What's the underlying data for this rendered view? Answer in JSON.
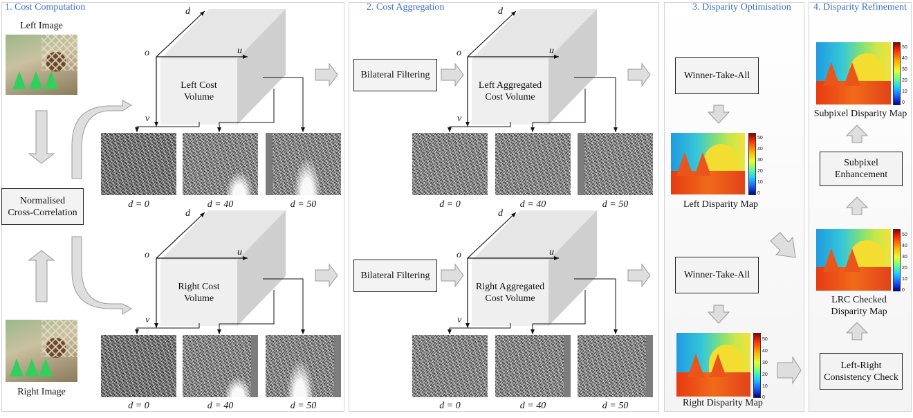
{
  "panels": {
    "p1": {
      "title": "1. Cost Computation"
    },
    "p2": {
      "title": "2. Cost Aggregation"
    },
    "p3": {
      "title": "3. Disparity Optimisation"
    },
    "p4": {
      "title": "4. Disparity Refinement"
    }
  },
  "inputs": {
    "left_label": "Left Image",
    "right_label": "Right Image"
  },
  "ncc": {
    "line1": "Normalised",
    "line2": "Cross-Correlation"
  },
  "axes": {
    "d": "d",
    "u": "u",
    "o": "o",
    "v": "v"
  },
  "cubes": {
    "left_cost": {
      "line1": "Left Cost",
      "line2": "Volume"
    },
    "right_cost": {
      "line1": "Right Cost",
      "line2": "Volume"
    },
    "left_agg": {
      "line1": "Left Aggregated",
      "line2": "Cost Volume"
    },
    "right_agg": {
      "line1": "Right Aggregated",
      "line2": "Cost Volume"
    }
  },
  "slices": {
    "d0": "d = 0",
    "d40": "d = 40",
    "d50": "d = 50"
  },
  "boxes": {
    "bilateral_top": "Bilateral Filtering",
    "bilateral_bottom": "Bilateral Filtering",
    "wta_top": "Winner-Take-All",
    "wta_bottom": "Winner-Take-All",
    "subpixel": {
      "line1": "Subpixel",
      "line2": "Enhancement"
    },
    "lrc": {
      "line1": "Left-Right",
      "line2": "Consistency Check"
    }
  },
  "maps": {
    "left": "Left Disparity Map",
    "right": "Right Disparity Map",
    "lrc": {
      "line1": "LRC Checked",
      "line2": "Disparity Map"
    },
    "subpixel": "Subpixel Disparity Map"
  },
  "colorbar_ticks": [
    "50",
    "40",
    "30",
    "20",
    "10",
    "0"
  ]
}
